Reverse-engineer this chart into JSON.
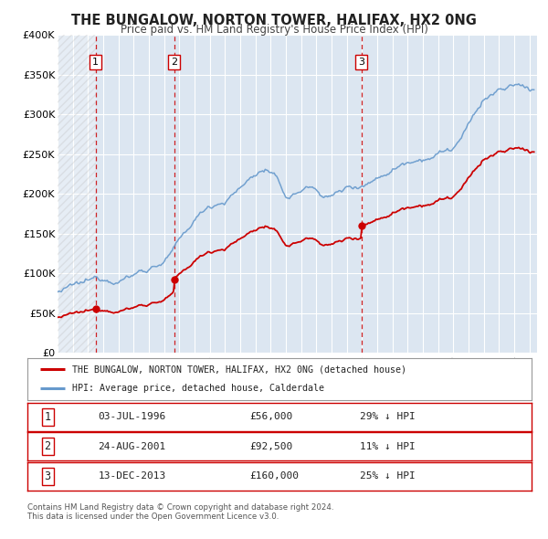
{
  "title": "THE BUNGALOW, NORTON TOWER, HALIFAX, HX2 0NG",
  "subtitle": "Price paid vs. HM Land Registry's House Price Index (HPI)",
  "background_color": "#ffffff",
  "plot_bg_color": "#dce6f1",
  "grid_color": "#ffffff",
  "ylim": [
    0,
    400000
  ],
  "yticks": [
    0,
    50000,
    100000,
    150000,
    200000,
    250000,
    300000,
    350000,
    400000
  ],
  "ytick_labels": [
    "£0",
    "£50K",
    "£100K",
    "£150K",
    "£200K",
    "£250K",
    "£300K",
    "£350K",
    "£400K"
  ],
  "xlim_start": 1994.0,
  "xlim_end": 2025.5,
  "sale_points": [
    {
      "year": 1996.5,
      "value": 56000,
      "label": "1"
    },
    {
      "year": 2001.65,
      "value": 92500,
      "label": "2"
    },
    {
      "year": 2013.95,
      "value": 160000,
      "label": "3"
    }
  ],
  "red_line_color": "#cc0000",
  "blue_line_color": "#6699cc",
  "marker_color": "#cc0000",
  "legend_entries": [
    "THE BUNGALOW, NORTON TOWER, HALIFAX, HX2 0NG (detached house)",
    "HPI: Average price, detached house, Calderdale"
  ],
  "table_rows": [
    {
      "num": "1",
      "date": "03-JUL-1996",
      "price": "£56,000",
      "hpi": "29% ↓ HPI"
    },
    {
      "num": "2",
      "date": "24-AUG-2001",
      "price": "£92,500",
      "hpi": "11% ↓ HPI"
    },
    {
      "num": "3",
      "date": "13-DEC-2013",
      "price": "£160,000",
      "hpi": "25% ↓ HPI"
    }
  ],
  "footnote1": "Contains HM Land Registry data © Crown copyright and database right 2024.",
  "footnote2": "This data is licensed under the Open Government Licence v3.0."
}
